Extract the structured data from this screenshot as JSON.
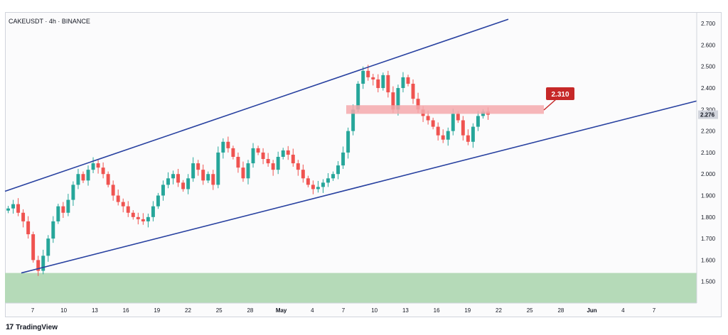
{
  "header": {
    "symbol": "CAKEUSDT · 4h · BINANCE"
  },
  "footer": {
    "brand": "TradingView",
    "brand_icon": "tradingview-logo-icon"
  },
  "colors": {
    "up": "#26a69a",
    "down": "#ef5350",
    "channel": "#2841a0",
    "resistance_zone": "#f4a9ad",
    "support_zone": "#b5dab8",
    "label_bg": "#c62828",
    "price_tag_bg": "#d1d4dc"
  },
  "chart_data": {
    "type": "candlestick",
    "ylim": [
      1.4,
      2.75
    ],
    "y_ticks": [
      "2.700",
      "2.600",
      "2.500",
      "2.400",
      "2.300",
      "2.200",
      "2.100",
      "2.000",
      "1.900",
      "1.800",
      "1.700",
      "1.600",
      "1.500"
    ],
    "x_ticks": [
      "7",
      "10",
      "13",
      "16",
      "19",
      "22",
      "25",
      "28",
      "May",
      "4",
      "7",
      "10",
      "13",
      "16",
      "19",
      "22",
      "25",
      "28",
      "Jun",
      "4",
      "7"
    ],
    "last_price": "2.276",
    "resistance_label": "2.310",
    "resistance_zone": [
      2.28,
      2.32
    ],
    "support_zone": [
      1.4,
      1.54
    ],
    "channel_upper": [
      {
        "x": "3",
        "y": 1.92
      },
      {
        "x": "21",
        "y": 2.72
      }
    ],
    "channel_lower": [
      {
        "x": "6",
        "y": 1.54
      },
      {
        "x": "Jun 8",
        "y": 2.34
      }
    ],
    "closes": [
      1.84,
      1.86,
      1.82,
      1.78,
      1.72,
      1.6,
      1.55,
      1.62,
      1.7,
      1.78,
      1.85,
      1.82,
      1.88,
      1.95,
      2.0,
      1.97,
      2.02,
      2.05,
      2.03,
      2.0,
      1.95,
      1.9,
      1.87,
      1.85,
      1.82,
      1.8,
      1.79,
      1.78,
      1.8,
      1.85,
      1.9,
      1.95,
      1.98,
      2.0,
      1.96,
      1.93,
      1.98,
      2.05,
      2.02,
      1.97,
      2.0,
      1.95,
      2.1,
      2.15,
      2.12,
      2.08,
      2.03,
      1.98,
      2.05,
      2.12,
      2.1,
      2.07,
      2.05,
      2.02,
      2.08,
      2.11,
      2.09,
      2.05,
      2.02,
      1.98,
      1.95,
      1.93,
      1.94,
      1.96,
      1.98,
      2.0,
      2.04,
      2.1,
      2.2,
      2.3,
      2.42,
      2.48,
      2.45,
      2.44,
      2.4,
      2.46,
      2.38,
      2.3,
      2.4,
      2.45,
      2.42,
      2.35,
      2.3,
      2.27,
      2.25,
      2.22,
      2.18,
      2.16,
      2.2,
      2.28,
      2.25,
      2.18,
      2.15,
      2.22,
      2.27,
      2.29,
      2.276
    ]
  }
}
